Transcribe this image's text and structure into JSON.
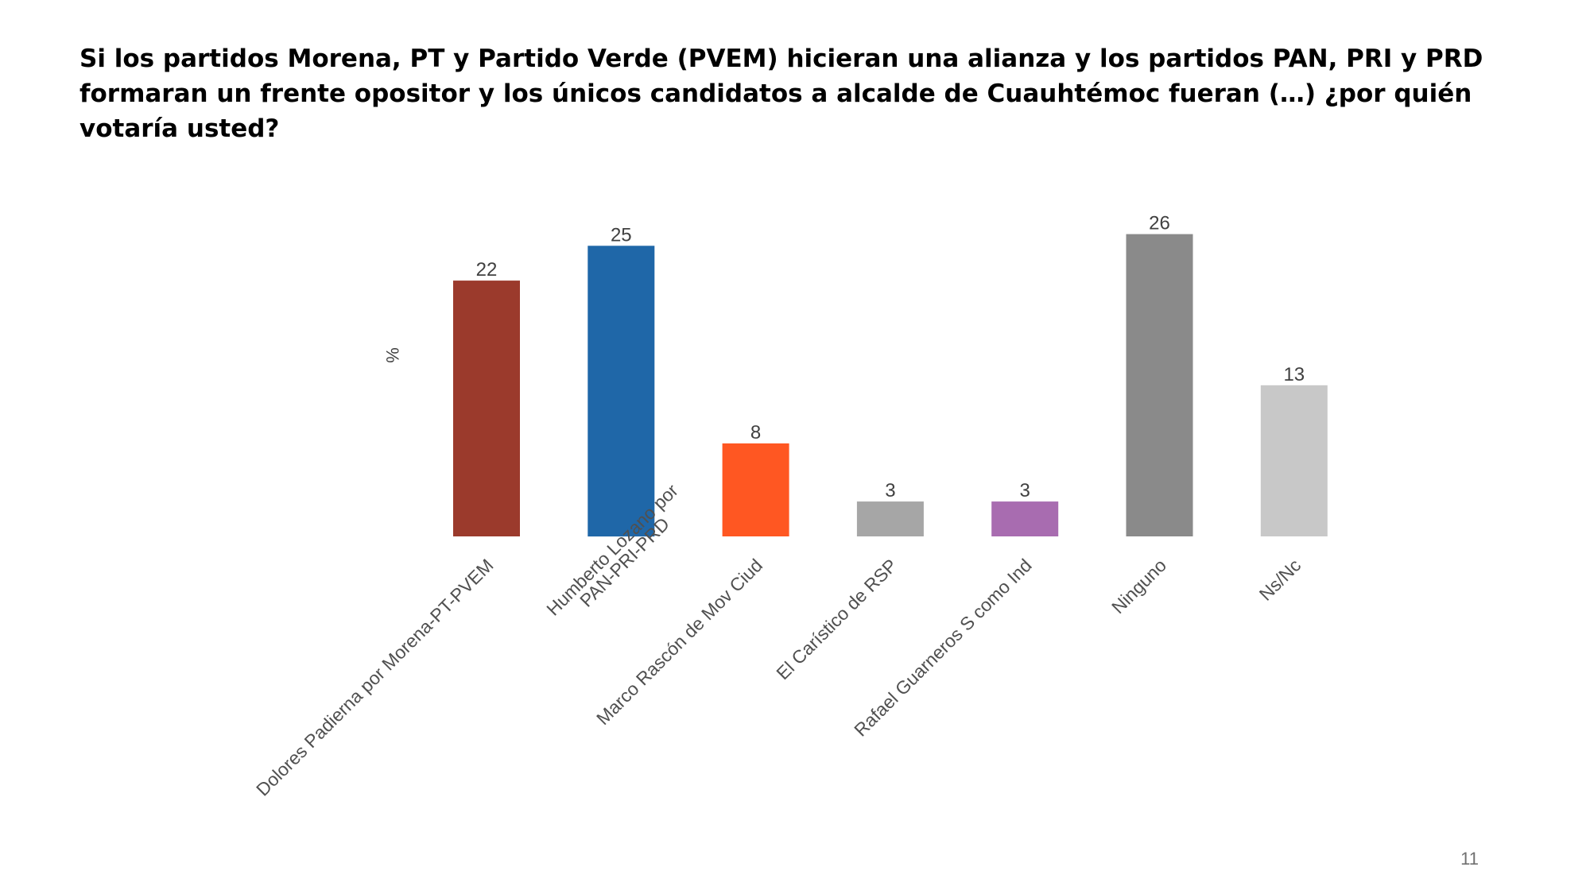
{
  "slide": {
    "title": "Si los partidos Morena, PT y Partido Verde (PVEM) hicieran una alianza y los partidos PAN, PRI y PRD formaran un frente opositor y los únicos candidatos a alcalde de Cuauhtémoc fueran (…) ¿por quién votaría usted?",
    "page_number": "11"
  },
  "chart_data": {
    "type": "bar",
    "title": "",
    "xlabel": "",
    "ylabel": "%",
    "ylim": [
      0,
      28
    ],
    "grid": false,
    "categories": [
      "Dolores Padierna por Morena-PT-PVEM",
      "Humberto Lozano por PAN-PRI-PRD",
      "Marco Rascón de Mov Ciud",
      "El Carístico de RSP",
      "Rafael Guarneros S como Ind",
      "Ninguno",
      "Ns/Nc"
    ],
    "category_lines": [
      [
        "Dolores Padierna por Morena-PT-PVEM"
      ],
      [
        "Humberto Lozano por",
        "PAN-PRI-PRD"
      ],
      [
        "Marco Rascón de Mov Ciud"
      ],
      [
        "El Carístico de RSP"
      ],
      [
        "Rafael Guarneros S como Ind"
      ],
      [
        "Ninguno"
      ],
      [
        "Ns/Nc"
      ]
    ],
    "values": [
      22,
      25,
      8,
      3,
      3,
      26,
      13
    ],
    "colors": [
      "#9B3A2C",
      "#1F67A8",
      "#FF5722",
      "#A6A6A6",
      "#A86CB0",
      "#8A8A8A",
      "#C8C8C8"
    ]
  }
}
